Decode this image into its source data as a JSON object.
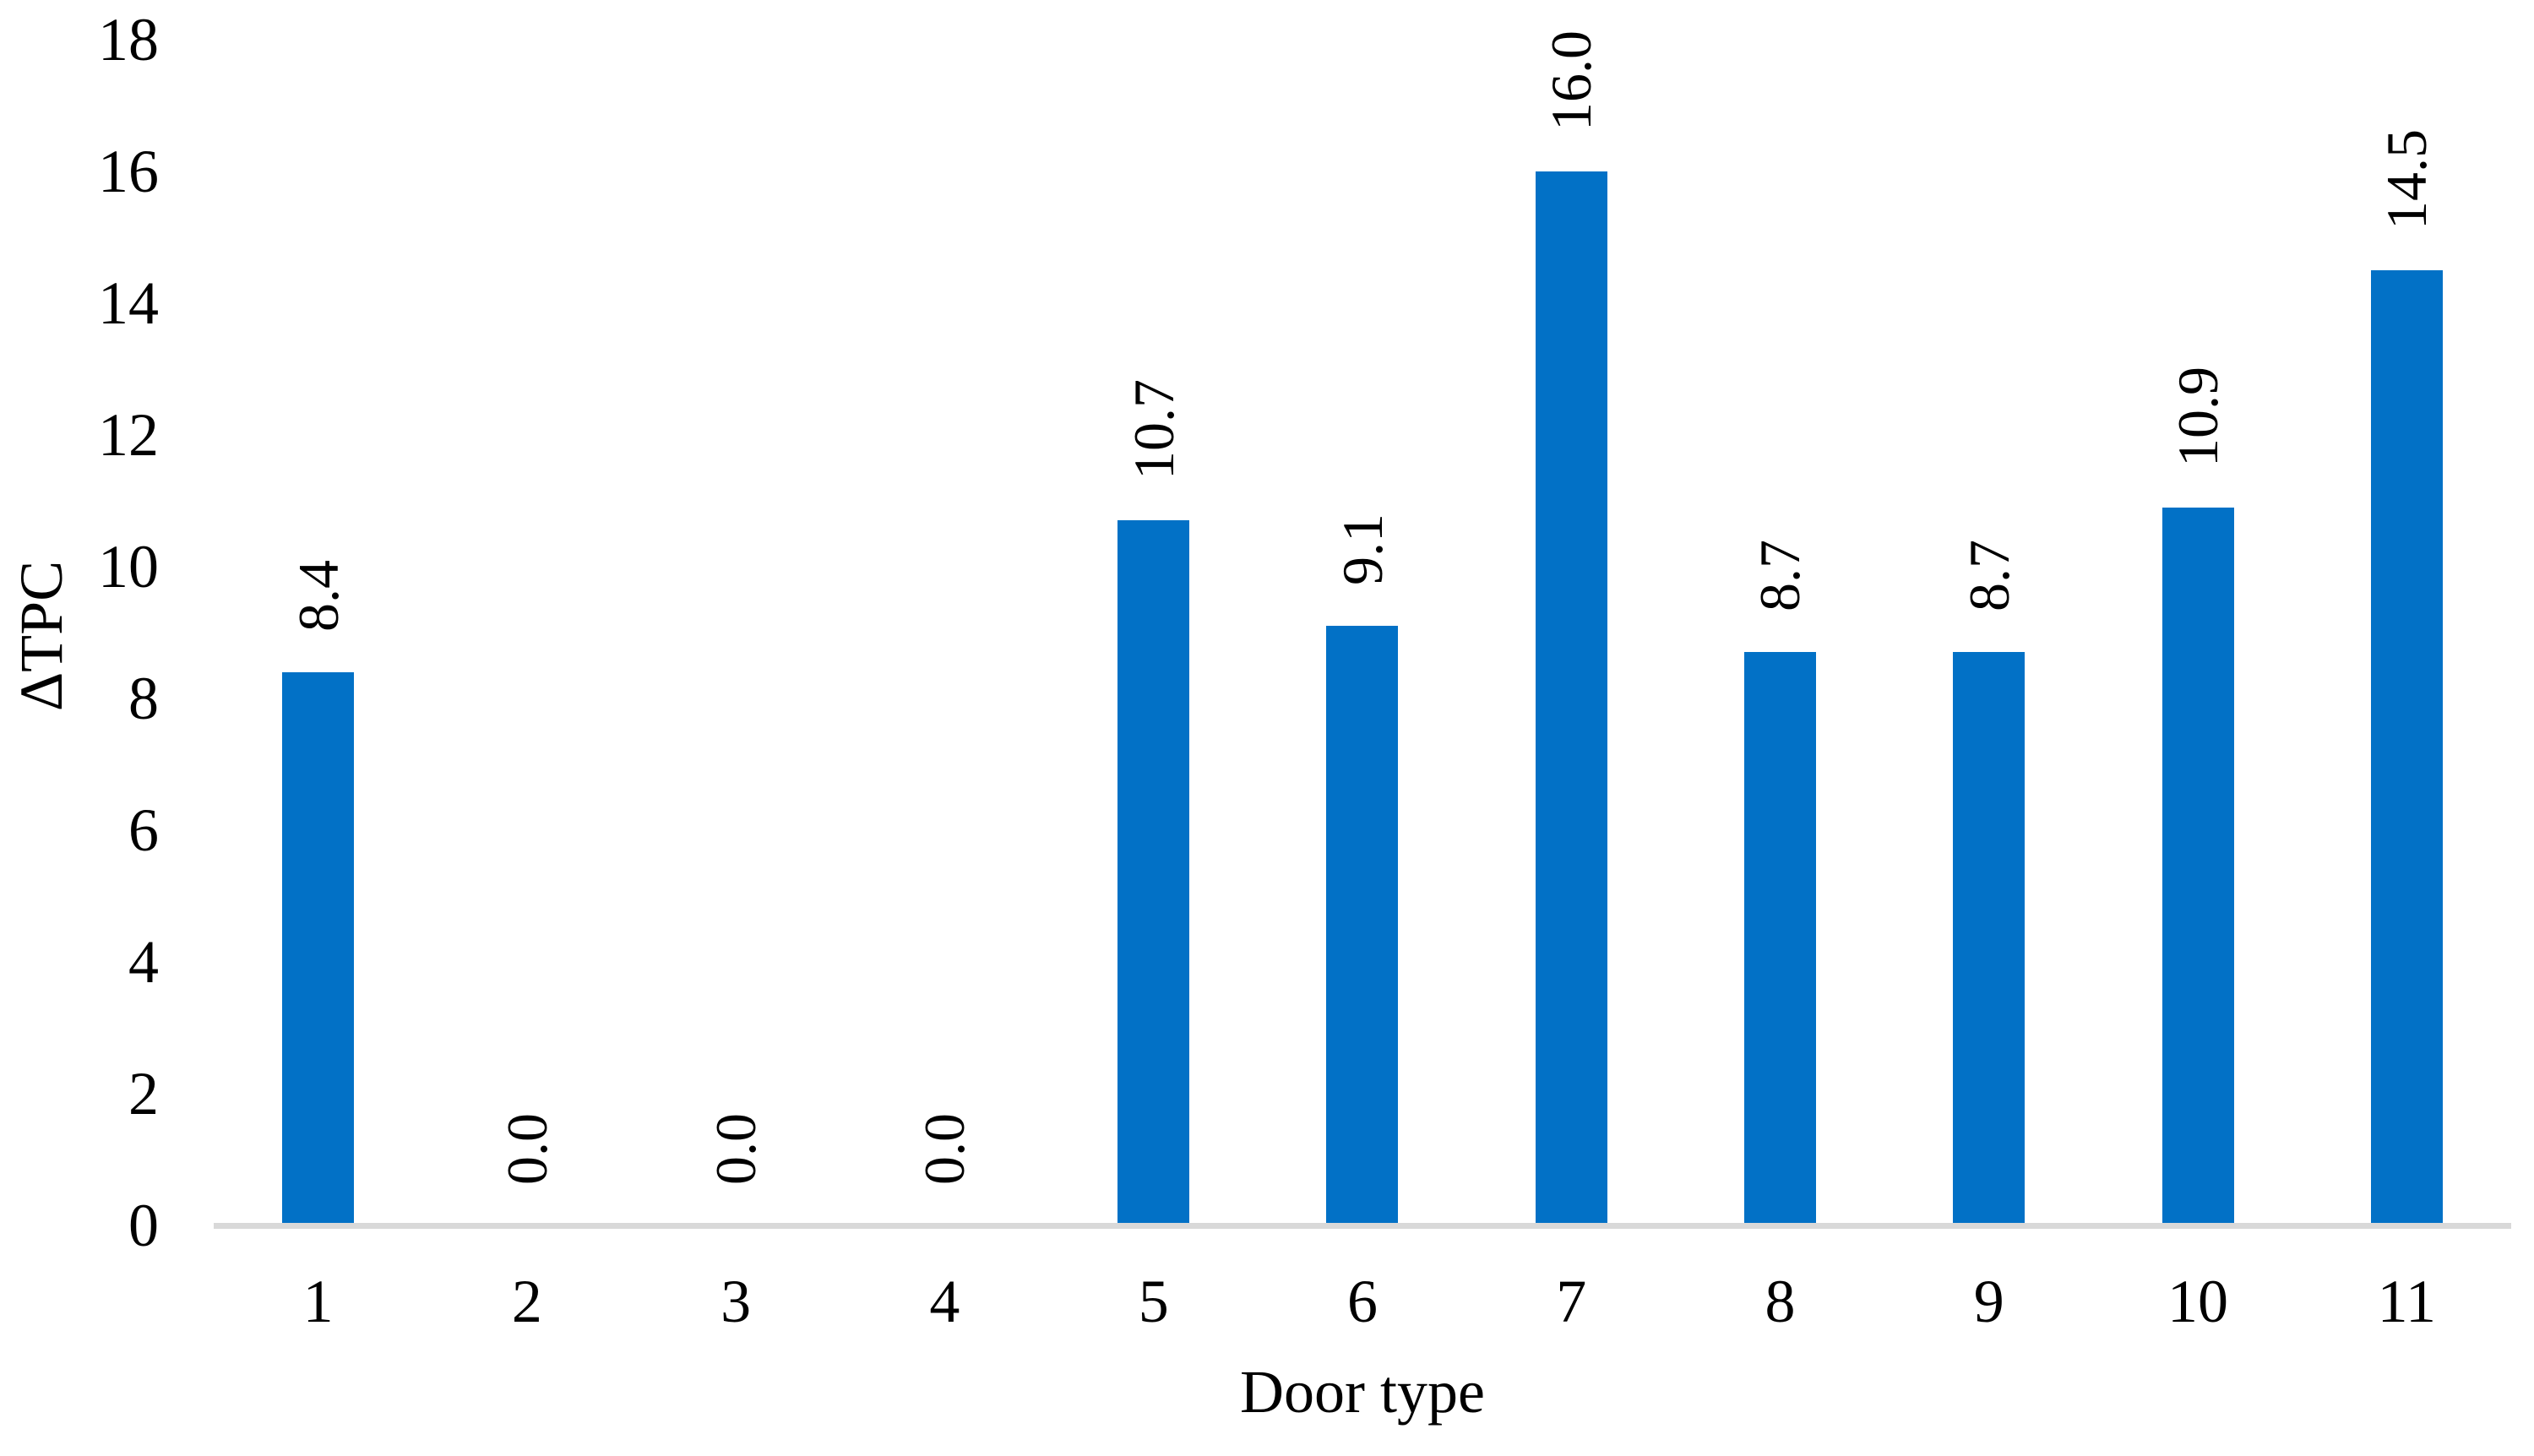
{
  "chart_data": {
    "type": "bar",
    "title": "",
    "xlabel": "Door type",
    "ylabel": "ΔTPC",
    "categories": [
      "1",
      "2",
      "3",
      "4",
      "5",
      "6",
      "7",
      "8",
      "9",
      "10",
      "11"
    ],
    "values": [
      8.4,
      0.0,
      0.0,
      0.0,
      10.7,
      9.1,
      16.0,
      8.7,
      8.7,
      10.9,
      14.5
    ],
    "value_labels": [
      "8.4",
      "0.0",
      "0.0",
      "0.0",
      "10.7",
      "9.1",
      "16.0",
      "8.7",
      "8.7",
      "10.9",
      "14.5"
    ],
    "ylim": [
      0,
      18
    ],
    "y_ticks": [
      0,
      2,
      4,
      6,
      8,
      10,
      12,
      14,
      16,
      18
    ],
    "grid": false,
    "legend": null,
    "series_name": null,
    "bar_color": "#0271c6",
    "axis_line_color": "#d9d9d9",
    "text_color": "#000000",
    "background_color": "#ffffff"
  }
}
